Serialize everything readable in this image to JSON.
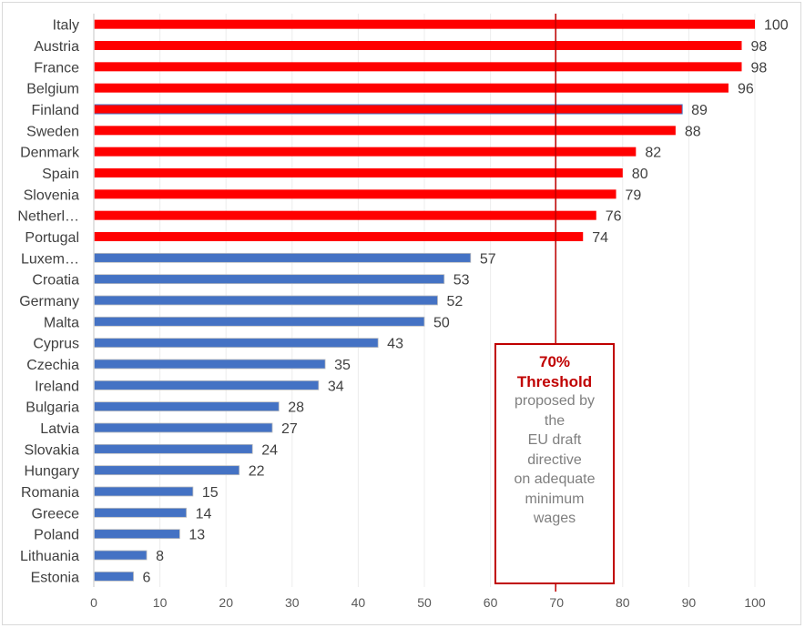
{
  "chart_data": {
    "type": "bar",
    "orientation": "horizontal",
    "title": "",
    "xlabel": "",
    "ylabel": "",
    "xlim": [
      0,
      100
    ],
    "xticks": [
      0,
      10,
      20,
      30,
      40,
      50,
      60,
      70,
      80,
      90,
      100
    ],
    "grid": true,
    "categories": [
      "Italy",
      "Austria",
      "France",
      "Belgium",
      "Finland",
      "Sweden",
      "Denmark",
      "Spain",
      "Slovenia",
      "Netherl…",
      "Portugal",
      "Luxem…",
      "Croatia",
      "Germany",
      "Malta",
      "Cyprus",
      "Czechia",
      "Ireland",
      "Bulgaria",
      "Latvia",
      "Slovakia",
      "Hungary",
      "Romania",
      "Greece",
      "Poland",
      "Lithuania",
      "Estonia"
    ],
    "values": [
      100,
      98,
      98,
      96,
      89,
      88,
      82,
      80,
      79,
      76,
      74,
      57,
      53,
      52,
      50,
      43,
      35,
      34,
      28,
      27,
      24,
      22,
      15,
      14,
      13,
      8,
      6
    ],
    "groups": [
      "above",
      "above",
      "above",
      "above",
      "above",
      "above",
      "above",
      "above",
      "above",
      "above",
      "above",
      "below",
      "below",
      "below",
      "below",
      "below",
      "below",
      "below",
      "below",
      "below",
      "below",
      "below",
      "below",
      "below",
      "below",
      "below",
      "below"
    ],
    "colors": {
      "above": "#ff0000",
      "below": "#4472c4",
      "threshold": "#c00000",
      "grid": "#ececec",
      "axis": "#d9d9d9"
    },
    "threshold": {
      "value": 70,
      "title_line1": "70%",
      "title_line2": "Threshold",
      "text_lines": [
        "proposed by",
        "the",
        "EU draft",
        "directive",
        "on adequate",
        "minimum",
        "wages"
      ]
    }
  }
}
